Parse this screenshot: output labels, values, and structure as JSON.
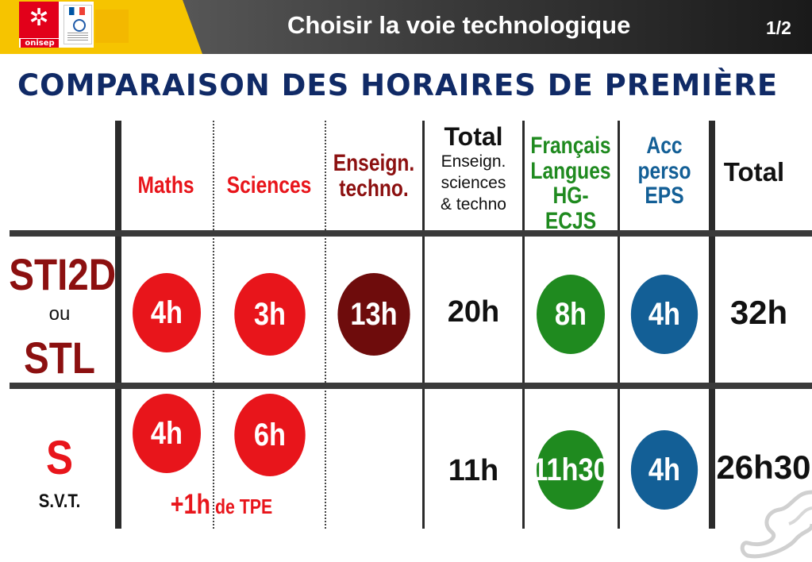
{
  "header": {
    "title": "Choisir la voie technologique",
    "page_number": "1/2",
    "logo_text": "onisep"
  },
  "page_title": "COMPARAISON DES HORAIRES DE PREMIÈRE",
  "columns": {
    "maths": "Maths",
    "sciences": "Sciences",
    "enseign_1": "Enseign.",
    "enseign_2": "techno.",
    "total_title": "Total",
    "total_sub_1": "Enseign.",
    "total_sub_2": "sciences",
    "total_sub_3": "& techno",
    "francais_1": "Français",
    "francais_2": "Langues",
    "francais_3": "HG-ECJS",
    "acc_1": "Acc",
    "acc_2": "perso",
    "acc_3": "EPS",
    "total": "Total"
  },
  "rows": {
    "sti2d": {
      "label_1": "STI2D",
      "label_or": "ou",
      "label_2": "STL",
      "maths": "4h",
      "sciences": "3h",
      "techno": "13h",
      "total_sciences": "20h",
      "francais": "8h",
      "acc": "4h",
      "total": "32h"
    },
    "s": {
      "label_1": "S",
      "label_2": "S.V.T.",
      "maths": "4h",
      "sciences": "6h",
      "tpe_1": "+1h",
      "tpe_2": " de TPE",
      "total_sciences": "11h",
      "francais": "11h30",
      "acc": "4h",
      "total": "26h30"
    }
  },
  "colors": {
    "red": "#e8151b",
    "dark_red": "#6e0c0c",
    "green": "#1f8a1f",
    "blue": "#135f96",
    "title_navy": "#102a66"
  }
}
